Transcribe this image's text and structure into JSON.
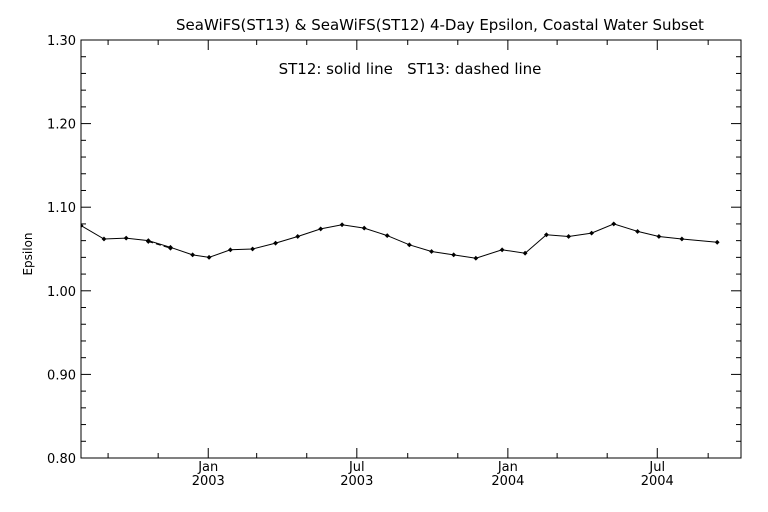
{
  "chart_data": {
    "type": "line",
    "title": "SeaWiFS(ST13) & SeaWiFS(ST12) 4-Day Epsilon, Coastal Water Subset",
    "annotation": "ST12: solid line   ST13: dashed line",
    "xlabel": "",
    "ylabel": "Epsilon",
    "xlim": [
      "2002-07-30",
      "2004-10-11"
    ],
    "ylim": [
      0.8,
      1.3
    ],
    "yticks": [
      "0.80",
      "0.90",
      "1.00",
      "1.10",
      "1.20",
      "1.30"
    ],
    "xticks": [
      {
        "date": "2003-01-01",
        "month": "Jan",
        "year": "2003"
      },
      {
        "date": "2003-07-01",
        "month": "Jul",
        "year": "2003"
      },
      {
        "date": "2004-01-01",
        "month": "Jan",
        "year": "2004"
      },
      {
        "date": "2004-07-01",
        "month": "Jul",
        "year": "2004"
      }
    ],
    "x_minor_ticks": [
      "2002-09-01",
      "2002-11-01",
      "2003-03-01",
      "2003-05-01",
      "2003-09-01",
      "2003-11-01",
      "2004-03-01",
      "2004-05-01",
      "2004-09-01"
    ],
    "grid": false,
    "color": "#000000",
    "series": [
      {
        "style": "solid",
        "marker": "diamond",
        "x": [
          "2002-07-30",
          "2002-08-27",
          "2002-09-23",
          "2002-10-20",
          "2002-11-16",
          "2002-12-13",
          "2003-01-02",
          "2003-01-28",
          "2003-02-24",
          "2003-03-24",
          "2003-04-20",
          "2003-05-18",
          "2003-06-13",
          "2003-07-10",
          "2003-08-07",
          "2003-09-03",
          "2003-09-30",
          "2003-10-27",
          "2003-11-23",
          "2003-12-25",
          "2004-01-22",
          "2004-02-17",
          "2004-03-15",
          "2004-04-12",
          "2004-05-09",
          "2004-06-07",
          "2004-07-03",
          "2004-07-31",
          "2004-09-12"
        ],
        "y": [
          1.078,
          1.062,
          1.063,
          1.06,
          1.052,
          1.043,
          1.04,
          1.049,
          1.05,
          1.057,
          1.065,
          1.074,
          1.079,
          1.075,
          1.066,
          1.055,
          1.047,
          1.043,
          1.039,
          1.049,
          1.045,
          1.067,
          1.065,
          1.069,
          1.08,
          1.071,
          1.065,
          1.062,
          1.058
        ]
      },
      {
        "style": "dashed",
        "marker": "diamond",
        "x": [
          "2002-10-20",
          "2002-11-16"
        ],
        "y": [
          1.059,
          1.051
        ]
      }
    ]
  }
}
